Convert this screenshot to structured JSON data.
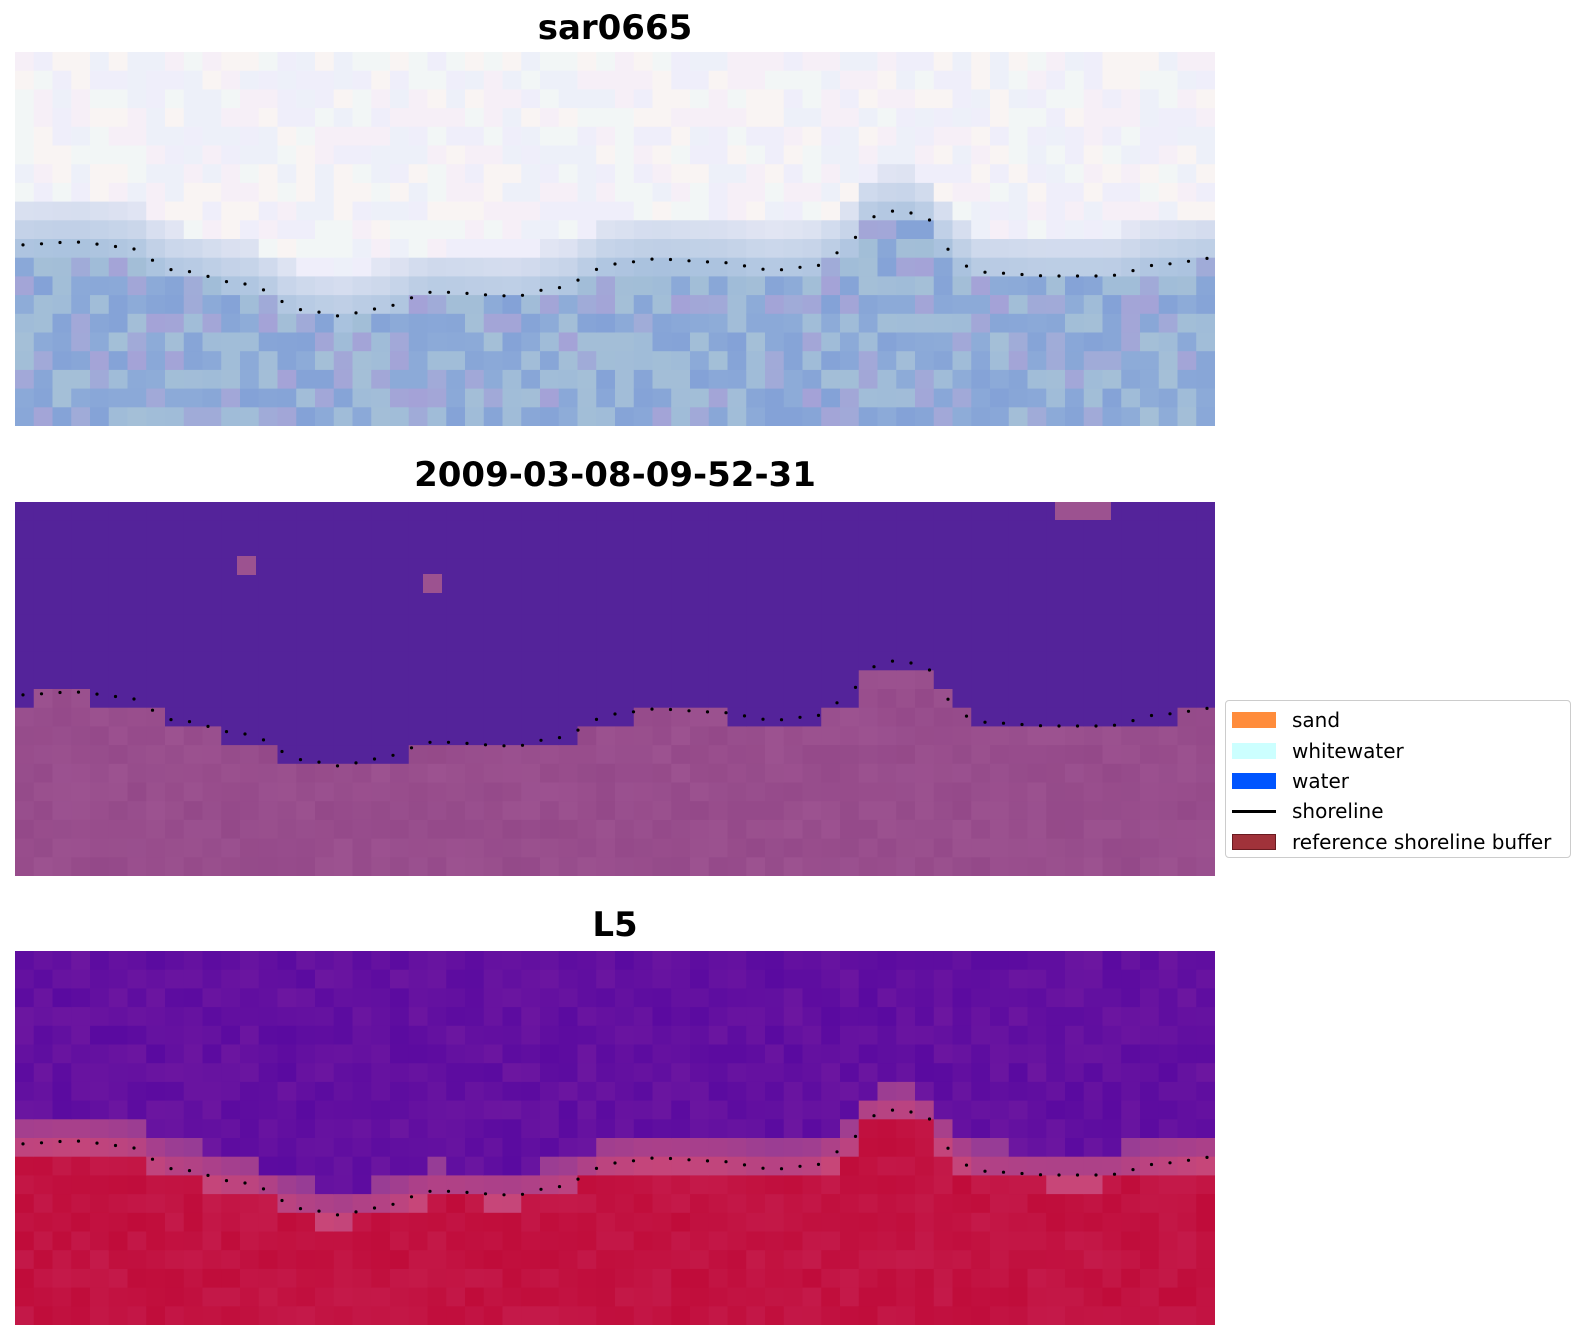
{
  "panels": [
    {
      "title": "sar0665"
    },
    {
      "title": "2009-03-08-09-52-31"
    },
    {
      "title": "L5"
    }
  ],
  "legend": {
    "items": [
      {
        "label": "sand",
        "color": "#ff8c3b",
        "kind": "patch"
      },
      {
        "label": "whitewater",
        "color": "#ccffff",
        "kind": "patch"
      },
      {
        "label": "water",
        "color": "#0055ff",
        "kind": "patch"
      },
      {
        "label": "shoreline",
        "color": "#000000",
        "kind": "line"
      },
      {
        "label": "reference shoreline buffer",
        "color": "#a0323a",
        "kind": "patch"
      }
    ]
  },
  "colors": {
    "sky_rgb": "#f4f0f8",
    "water_rgb": "#9ab8d8",
    "classified_upper": "#54239a",
    "classified_lower": "#9c5290",
    "index_upper": "#5a0aa0",
    "index_lower": "#c00c3a",
    "shoreline_dots": "#000000"
  }
}
